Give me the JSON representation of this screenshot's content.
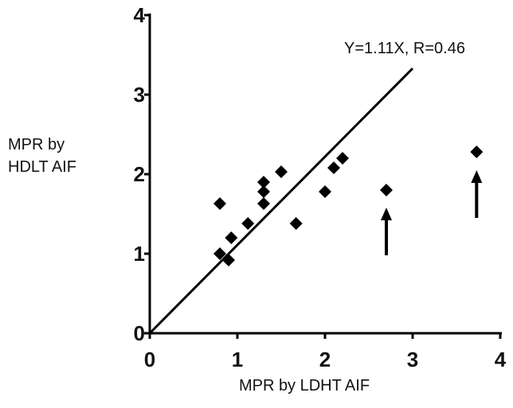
{
  "chart_data": {
    "type": "scatter",
    "title": "",
    "xlabel": "MPR by LDHT AIF",
    "ylabel_lines": [
      "MPR by",
      "HDLT AIF"
    ],
    "xlim": [
      0,
      4
    ],
    "ylim": [
      0,
      4
    ],
    "x_ticks": [
      "0",
      "1",
      "2",
      "3",
      "4"
    ],
    "y_ticks": [
      "0",
      "1",
      "2",
      "3",
      "4"
    ],
    "grid": false,
    "points": [
      {
        "x": 0.8,
        "y": 1.63
      },
      {
        "x": 0.8,
        "y": 1.0
      },
      {
        "x": 0.9,
        "y": 0.92
      },
      {
        "x": 0.93,
        "y": 1.2
      },
      {
        "x": 1.12,
        "y": 1.38
      },
      {
        "x": 1.3,
        "y": 1.9
      },
      {
        "x": 1.3,
        "y": 1.78
      },
      {
        "x": 1.3,
        "y": 1.63
      },
      {
        "x": 1.5,
        "y": 2.03
      },
      {
        "x": 1.67,
        "y": 1.38
      },
      {
        "x": 2.0,
        "y": 1.78
      },
      {
        "x": 2.1,
        "y": 2.08
      },
      {
        "x": 2.2,
        "y": 2.2
      },
      {
        "x": 2.7,
        "y": 1.8
      },
      {
        "x": 3.73,
        "y": 2.28
      }
    ],
    "fit_line": {
      "slope": 1.11,
      "x_range": [
        0,
        3.0
      ]
    },
    "annotation": "Y=1.11X, R=0.46",
    "arrows": [
      {
        "x": 2.7,
        "y_from": 0.98,
        "y_to": 1.58
      },
      {
        "x": 3.73,
        "y_from": 1.45,
        "y_to": 2.05
      }
    ],
    "marker_color": "#000000"
  }
}
